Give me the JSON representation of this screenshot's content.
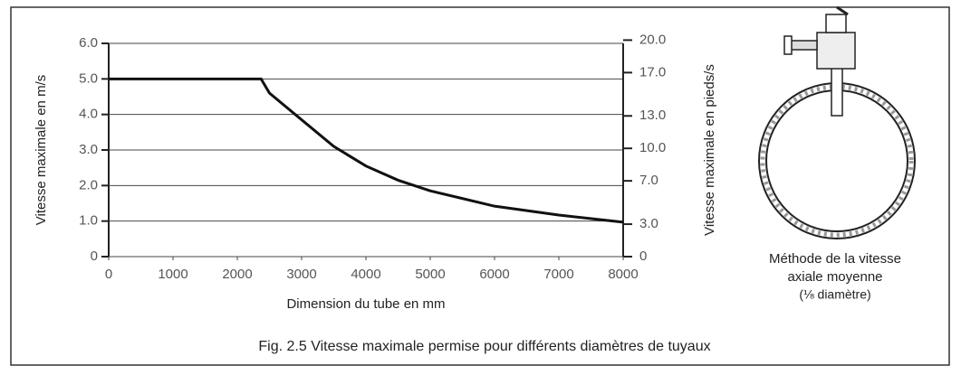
{
  "chart_data": {
    "type": "line",
    "title": "Fig. 2.5 Vitesse maximale permise pour différents diamètres de tuyaux",
    "x_label": "Dimension du tube en mm",
    "y_label": "Vitesse maximale en m/s",
    "y2_label": "Vitesse maximale en pieds/s",
    "x": [
      0,
      2370,
      2500,
      3000,
      3500,
      4000,
      4500,
      5000,
      6000,
      7000,
      8000
    ],
    "values": [
      5,
      5,
      4.6,
      3.85,
      3.1,
      2.55,
      2.15,
      1.85,
      1.42,
      1.17,
      0.97
    ],
    "color": "#111111",
    "xlim": [
      0,
      8000
    ],
    "xticks": [
      0,
      1000,
      2000,
      3000,
      4000,
      5000,
      6000,
      7000,
      8000
    ],
    "ylim": [
      0,
      6
    ],
    "yticks": [
      0,
      {
        "value": 1,
        "label": "1.0"
      },
      {
        "value": 2,
        "label": "2.0"
      },
      {
        "value": 3,
        "label": "3.0"
      },
      {
        "value": 4,
        "label": "4.0"
      },
      {
        "value": 5,
        "label": "5.0"
      },
      {
        "value": 6,
        "label": "6.0"
      }
    ],
    "y2lim": [
      0,
      19.7
    ],
    "y2ticks": [
      0,
      {
        "value": 3,
        "label": "3.0"
      },
      {
        "value": 7,
        "label": "7.0"
      },
      {
        "value": 10,
        "label": "10.0"
      },
      {
        "value": 13,
        "label": "13.0"
      },
      {
        "value": 17,
        "label": "17.0"
      },
      {
        "value": 20,
        "label": "20.0"
      }
    ],
    "grid": true,
    "annotations": [
      "Méthode de la vitesse",
      "axiale moyenne",
      "(⅛ diamètre)"
    ]
  }
}
